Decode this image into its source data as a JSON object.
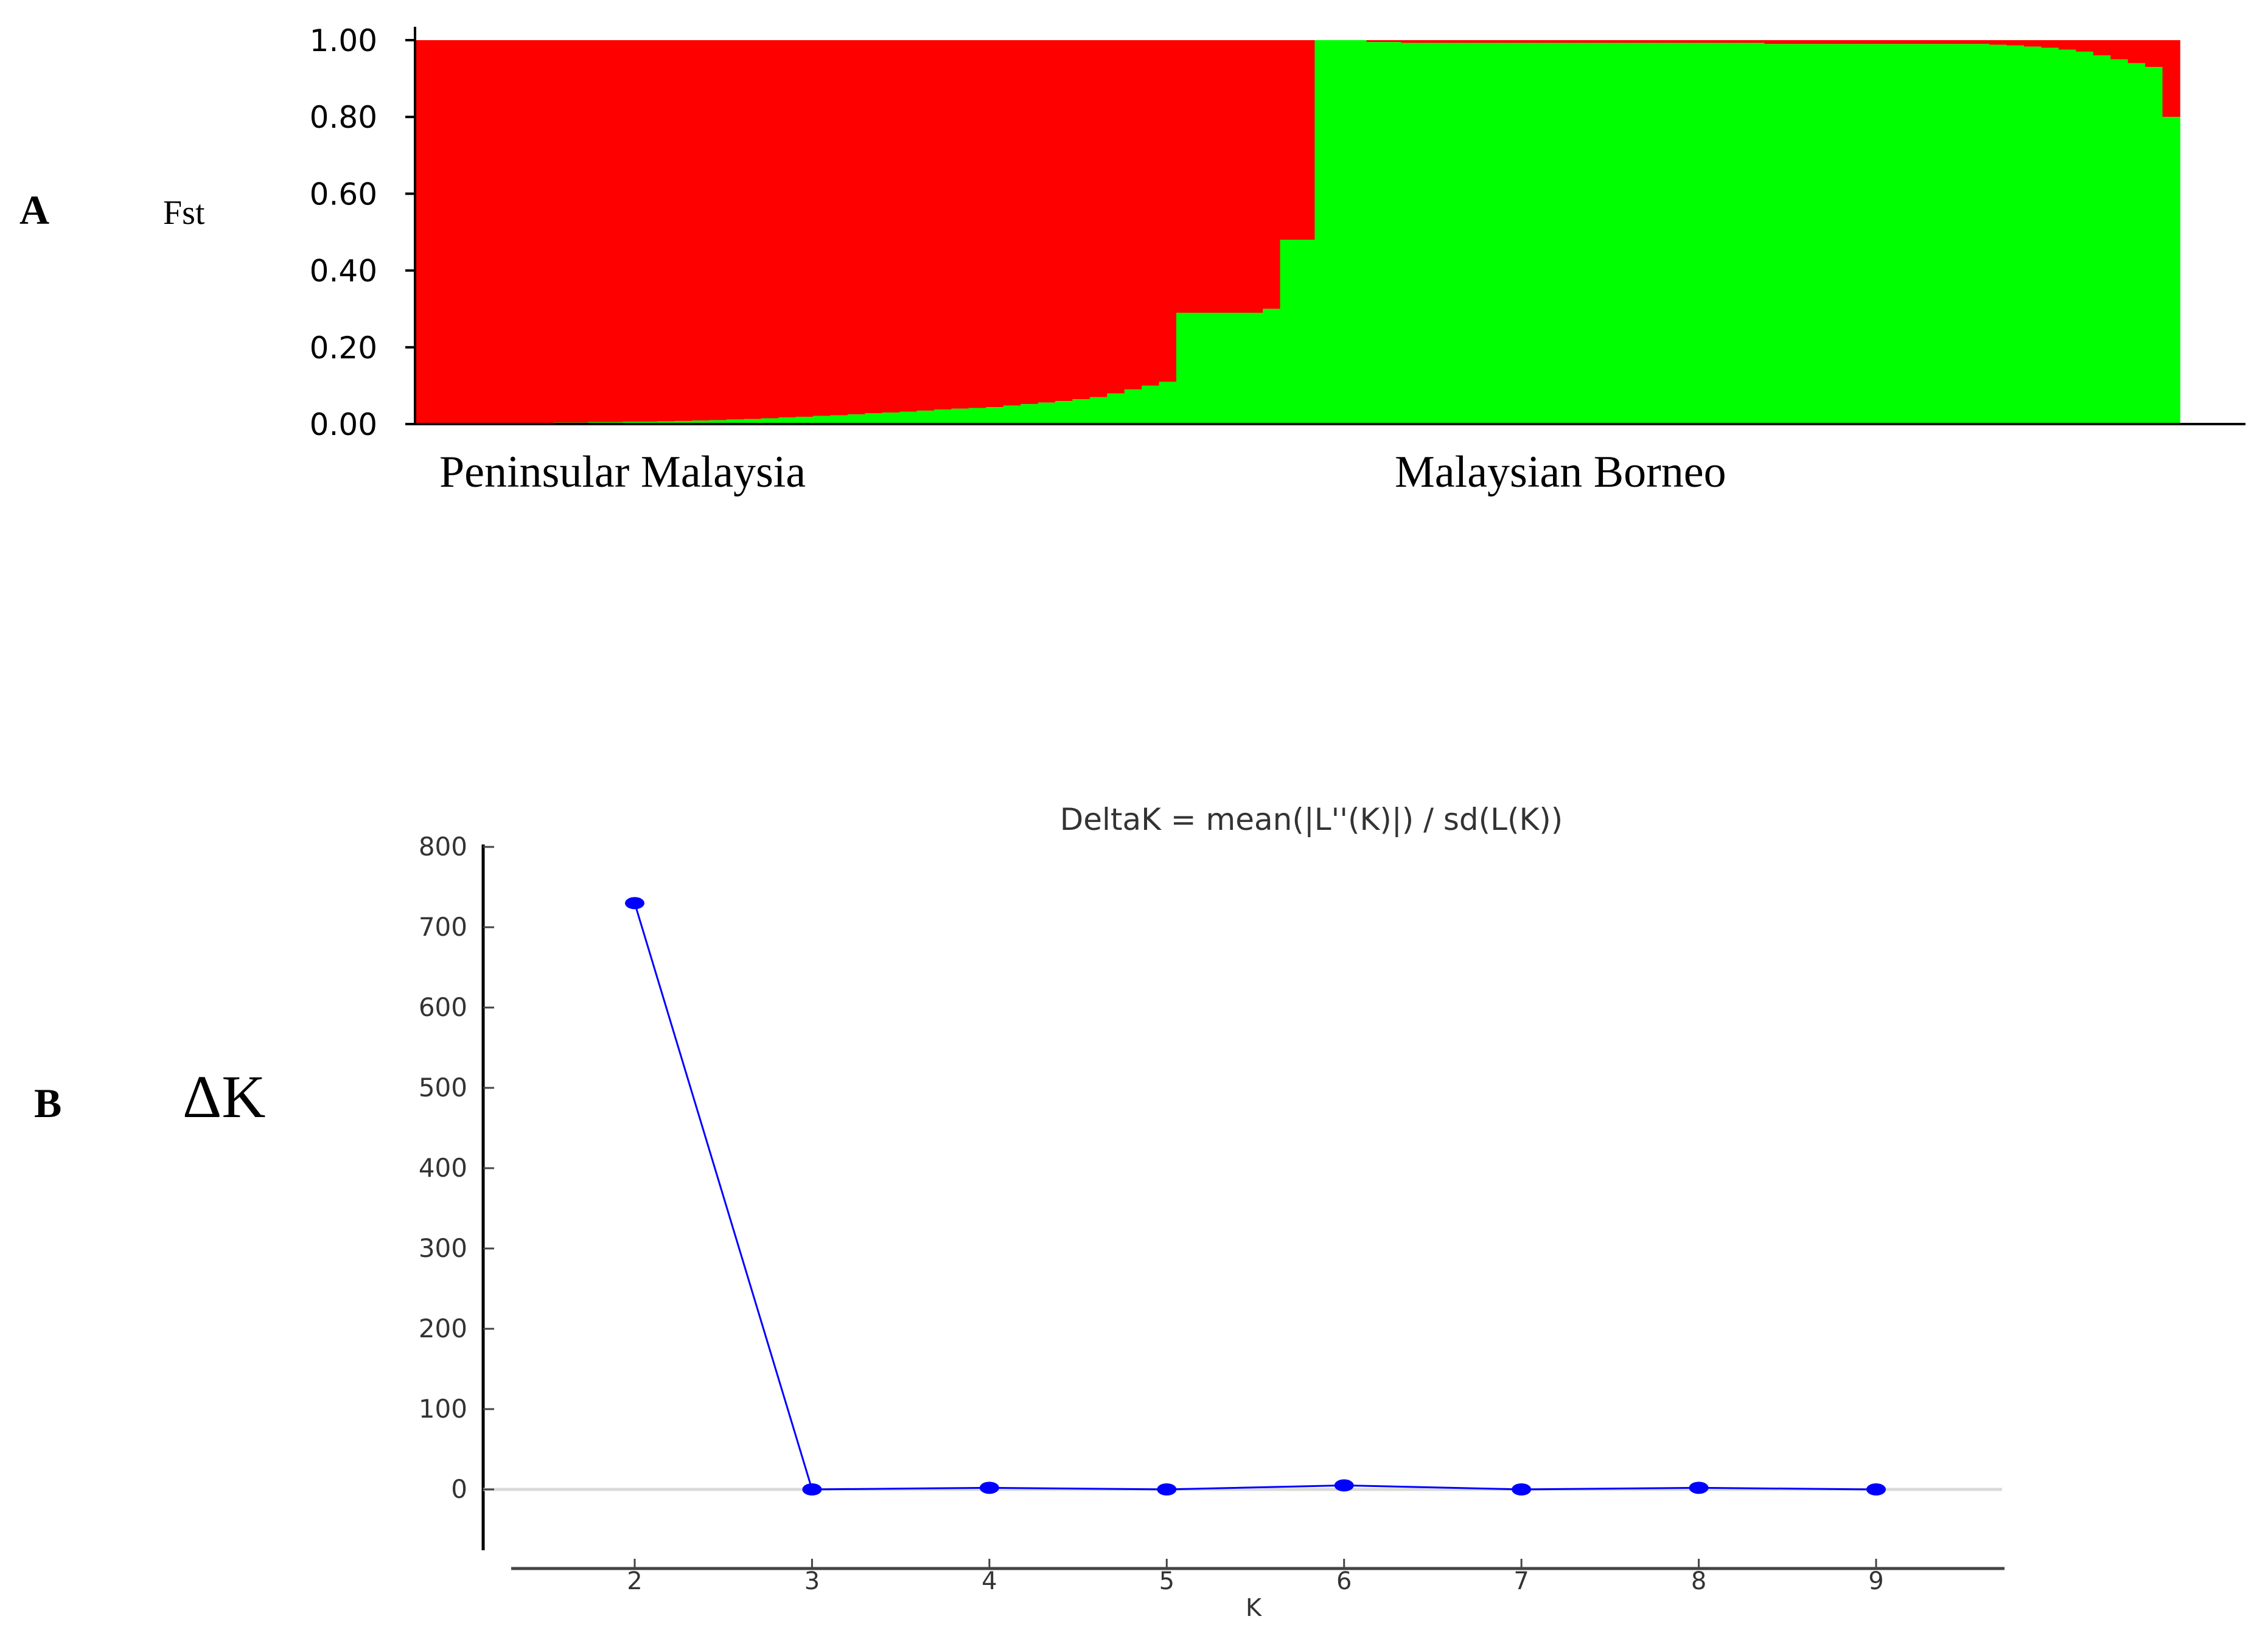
{
  "panels": {
    "a": {
      "letter": "A",
      "ylabel": "Fst"
    },
    "b": {
      "letter": "B",
      "ylabel": "ΔK"
    }
  },
  "chart_data": [
    {
      "type": "bar",
      "subtype": "stacked-admixture",
      "title": "",
      "xlabel": "",
      "ylabel": "Fst",
      "ylim": [
        0,
        1
      ],
      "yticks": [
        "0.00",
        "0.20",
        "0.40",
        "0.60",
        "0.80",
        "1.00"
      ],
      "group_labels": [
        "Peninsular Malaysia",
        "Malaysian Borneo"
      ],
      "colors": {
        "cluster_1": "#ff0000",
        "cluster_2": "#00ff00"
      },
      "individuals": 100,
      "cluster_2_membership": [
        0,
        0,
        0,
        0,
        0,
        0,
        0,
        0,
        0.004,
        0.004,
        0.005,
        0.005,
        0.006,
        0.006,
        0.007,
        0.008,
        0.009,
        0.01,
        0.012,
        0.013,
        0.015,
        0.017,
        0.019,
        0.021,
        0.023,
        0.025,
        0.028,
        0.03,
        0.032,
        0.035,
        0.038,
        0.04,
        0.042,
        0.044,
        0.048,
        0.052,
        0.056,
        0.06,
        0.065,
        0.07,
        0.08,
        0.09,
        0.1,
        0.11,
        0.29,
        0.29,
        0.29,
        0.29,
        0.29,
        0.3,
        0.48,
        0.48,
        1,
        1,
        1,
        0.995,
        0.995,
        0.993,
        0.993,
        0.993,
        0.993,
        0.993,
        0.993,
        0.993,
        0.993,
        0.993,
        0.993,
        0.993,
        0.993,
        0.993,
        0.993,
        0.993,
        0.993,
        0.993,
        0.993,
        0.993,
        0.993,
        0.993,
        0.99,
        0.99,
        0.99,
        0.99,
        0.99,
        0.99,
        0.99,
        0.99,
        0.99,
        0.99,
        0.99,
        0.99,
        0.99,
        0.988,
        0.986,
        0.983,
        0.98,
        0.975,
        0.97,
        0.96,
        0.95,
        0.94,
        0.93,
        0.8
      ]
    },
    {
      "type": "line",
      "title": "DeltaK = mean(|L''(K)|) / sd(L(K))",
      "xlabel": "K",
      "ylabel": "ΔK",
      "ylim": [
        0,
        800
      ],
      "yticks": [
        0,
        100,
        200,
        300,
        400,
        500,
        600,
        700,
        800
      ],
      "grid": false,
      "reference_line": 0,
      "color": "#0000ff",
      "x": [
        2,
        3,
        4,
        5,
        6,
        7,
        8,
        9
      ],
      "y": [
        730,
        0,
        2,
        0,
        5,
        0,
        2,
        0
      ]
    }
  ]
}
